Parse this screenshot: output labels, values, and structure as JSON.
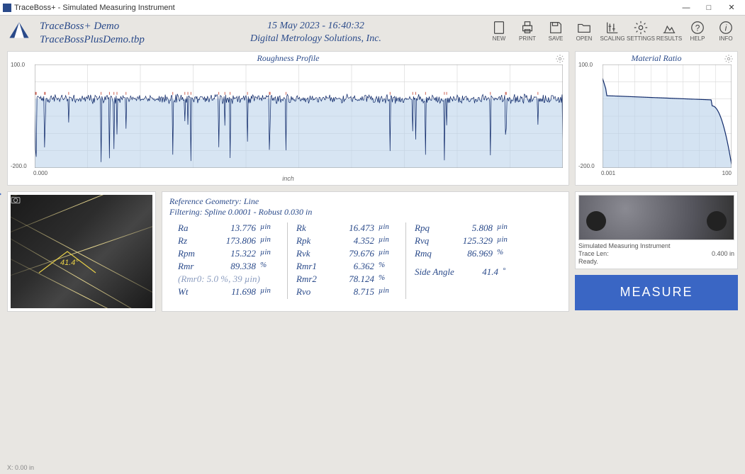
{
  "window": {
    "title": "TraceBoss+ - Simulated Measuring Instrument"
  },
  "header": {
    "project_name": "TraceBoss+ Demo",
    "file_name": "TraceBossPlusDemo.tbp",
    "datetime": "15 May 2023 - 16:40:32",
    "company": "Digital Metrology Solutions, Inc."
  },
  "toolbar": {
    "new": "NEW",
    "print": "PRINT",
    "save": "SAVE",
    "open": "OPEN",
    "scaling": "SCALING",
    "settings": "SETTINGS",
    "results": "RESULTS",
    "help": "HELP",
    "info": "INFO"
  },
  "profile_chart": {
    "title": "Roughness Profile",
    "type": "line",
    "y_max_label": "100.0",
    "y_min_label": "-200.0",
    "x_min_label": "0.000",
    "x_max_label": "",
    "x_axis_label": "inch",
    "ylim": [
      -200,
      100
    ],
    "xlim": [
      0,
      1
    ],
    "grid_color": "#d8d8d8",
    "fill_color": "#b7d0ea",
    "trace_color": "#102a6a",
    "accent_color": "#c24a3a",
    "background": "#ffffff"
  },
  "ratio_chart": {
    "title": "Material Ratio",
    "type": "line",
    "y_max_label": "100.0",
    "y_min_label": "-200.0",
    "x_min_label": "0.001",
    "x_max_label": "100",
    "ylim": [
      -200,
      100
    ],
    "xlim": [
      0,
      100
    ],
    "grid_color": "#d8d8d8",
    "curve_color": "#102a6a",
    "fill_color": "#b7d0ea",
    "background": "#ffffff"
  },
  "camera": {
    "angle_label": "41.4°"
  },
  "results": {
    "ref_geometry": "Reference Geometry: Line",
    "filtering": "Filtering: Spline 0.0001 - Robust 0.030 in",
    "col1": [
      {
        "label": "Ra",
        "value": "13.776",
        "unit": "µin"
      },
      {
        "label": "Rz",
        "value": "173.806",
        "unit": "µin"
      },
      {
        "label": "Rpm",
        "value": "15.322",
        "unit": "µin"
      },
      {
        "label": "Rmr",
        "value": "89.338",
        "unit": "%"
      }
    ],
    "col1_dim": "(Rmr0: 5.0 %,  39 µin)",
    "col1_tail": {
      "label": "Wt",
      "value": "11.698",
      "unit": "µin"
    },
    "col2": [
      {
        "label": "Rk",
        "value": "16.473",
        "unit": "µin"
      },
      {
        "label": "Rpk",
        "value": "4.352",
        "unit": "µin"
      },
      {
        "label": "Rvk",
        "value": "79.676",
        "unit": "µin"
      },
      {
        "label": "Rmr1",
        "value": "6.362",
        "unit": "%"
      },
      {
        "label": "Rmr2",
        "value": "78.124",
        "unit": "%"
      },
      {
        "label": "Rvo",
        "value": "8.715",
        "unit": "µin"
      }
    ],
    "col3": [
      {
        "label": "Rpq",
        "value": "5.808",
        "unit": "µin"
      },
      {
        "label": "Rvq",
        "value": "125.329",
        "unit": "µin"
      },
      {
        "label": "Rmq",
        "value": "86.969",
        "unit": "%"
      }
    ],
    "col3_tail": {
      "label": "Side Angle",
      "value": "41.4",
      "unit": "°"
    }
  },
  "thumb": {
    "title": "Simulated Measuring Instrument",
    "trace_label": "Trace Len:",
    "trace_value": "0.400 in",
    "status": "Ready."
  },
  "measure_button": "MEASURE",
  "status": "X: 0.00 in",
  "colors": {
    "accent": "#2a4a8a",
    "button": "#3a66c4",
    "panel_border": "#d5d5d5",
    "bg": "#e8e6e2"
  }
}
